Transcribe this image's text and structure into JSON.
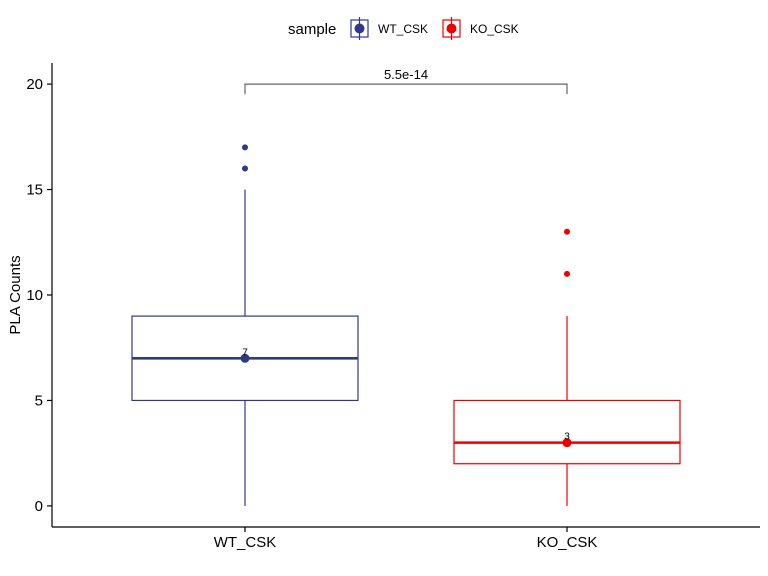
{
  "chart_data": {
    "type": "boxplot",
    "title": "",
    "xlabel": "",
    "ylabel": "PLA Counts",
    "ylim": [
      -1,
      21
    ],
    "yticks": [
      0,
      5,
      10,
      15,
      20
    ],
    "ytick_labels": [
      "0",
      "5",
      "10",
      "15",
      "20"
    ],
    "legend": {
      "title": "sample",
      "position": "top",
      "entries": [
        {
          "label": "WT_CSK",
          "color": "#2E3A87"
        },
        {
          "label": "KO_CSK",
          "color": "#EE0000"
        }
      ]
    },
    "categories": [
      "WT_CSK",
      "KO_CSK"
    ],
    "series": [
      {
        "name": "WT_CSK",
        "color": "#2E3A87",
        "min": 0,
        "q1": 5,
        "median": 7,
        "q3": 9,
        "max": 15,
        "mean": 7,
        "median_label": "7",
        "outliers": [
          16,
          17
        ]
      },
      {
        "name": "KO_CSK",
        "color": "#EE0000",
        "min": 0,
        "q1": 2,
        "median": 3,
        "q3": 5,
        "max": 9,
        "mean": 3,
        "median_label": "3",
        "outliers": [
          11,
          13
        ]
      }
    ],
    "comparison": {
      "groups": [
        "WT_CSK",
        "KO_CSK"
      ],
      "y": 20,
      "label": "5.5e-14"
    }
  }
}
